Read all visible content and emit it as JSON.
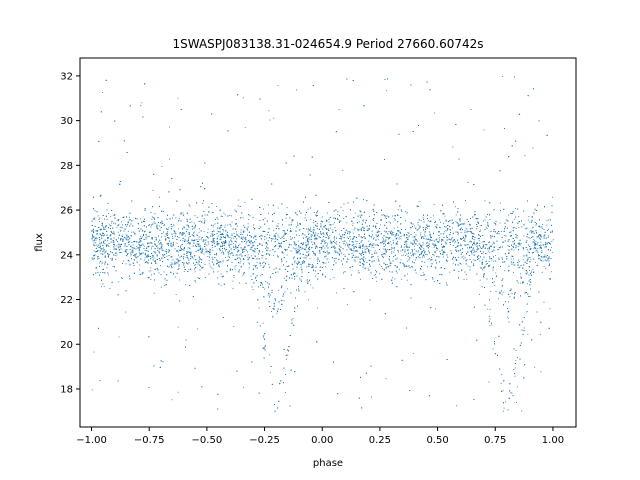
{
  "chart_data": {
    "type": "scatter",
    "title": "1SWASPJ083138.31-024654.9 Period 27660.60742s",
    "xlabel": "phase",
    "ylabel": "flux",
    "xlim": [
      -1.05,
      1.1
    ],
    "ylim": [
      16.3,
      32.8
    ],
    "xticks": [
      -1.0,
      -0.75,
      -0.5,
      -0.25,
      0.0,
      0.25,
      0.5,
      0.75,
      1.0
    ],
    "xtick_labels": [
      "−1.00",
      "−0.75",
      "−0.50",
      "−0.25",
      "0.00",
      "0.25",
      "0.50",
      "0.75",
      "1.00"
    ],
    "yticks": [
      18,
      20,
      22,
      24,
      26,
      28,
      30,
      32
    ],
    "ytick_labels": [
      "18",
      "20",
      "22",
      "24",
      "26",
      "28",
      "30",
      "32"
    ],
    "grid": false,
    "legend": "none",
    "marker_color": "#1f77b4",
    "series": [
      {
        "description_points": "dense phase-folded light curve; baseline flux ~24.5 with scatter ±1.5; primary eclipse minima near phase -0.20 and 0.80 reaching ~17; secondary shallower dip ~21.5 near same phases",
        "x_range": [
          -1.0,
          1.0
        ],
        "baseline": 24.5,
        "eclipse_phases": [
          -0.2,
          0.8
        ],
        "eclipse_min": 17.0,
        "eclipse_width": 0.13,
        "secondary_dip_min": 21.5
      }
    ]
  }
}
